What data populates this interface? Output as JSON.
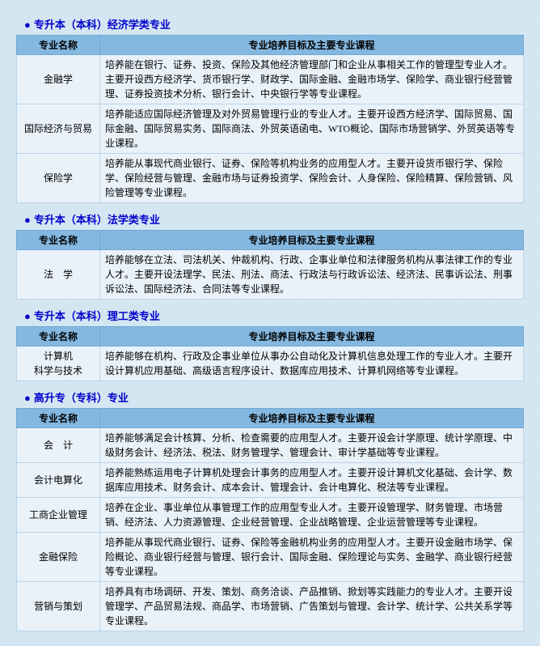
{
  "sections": [
    {
      "title": "专升本（本科）经济学类专业",
      "col1": "专业名称",
      "col2": "专业培养目标及主要专业课程",
      "rows": [
        {
          "name": "金融学",
          "desc": "培养能在银行、证券、投资、保险及其他经济管理部门和企业从事相关工作的管理型专业人才。主要开设西方经济学、货币银行学、财政学、国际金融、金融市场学、保险学、商业银行经营管理、证券投资技术分析、银行会计、中央银行学等专业课程。"
        },
        {
          "name": "国际经济与贸易",
          "desc": "培养能适应国际经济管理及对外贸易管理行业的专业人才。主要开设西方经济学、国际贸易、国际金融、国际贸易实务、国际商法、外贸英语函电、WTO概论、国际市场营销学、外贸英语等专业课程。"
        },
        {
          "name": "保险学",
          "desc": "培养能从事现代商业银行、证券、保险等机构业务的应用型人才。主要开设货币银行学、保险学、保险经营与管理、金融市场与证券投资学、保险会计、人身保险、保险精算、保险营销、风险管理等专业课程。"
        }
      ]
    },
    {
      "title": "专升本（本科）法学类专业",
      "col1": "专业名称",
      "col2": "专业培养目标及主要专业课程",
      "rows": [
        {
          "name": "法　学",
          "desc": "培养能够在立法、司法机关、仲裁机构、行政、企事业单位和法律服务机构从事法律工作的专业人才。主要开设法理学、民法、刑法、商法、行政法与行政诉讼法、经济法、民事诉讼法、刑事诉讼法、国际经济法、合同法等专业课程。"
        }
      ]
    },
    {
      "title": "专升本（本科）理工类专业",
      "col1": "专业名称",
      "col2": "专业培养目标及主要专业课程",
      "rows": [
        {
          "name": "计算机\n科学与技术",
          "desc": "培养能够在机构、行政及企事业单位从事办公自动化及计算机信息处理工作的专业人才。主要开设计算机应用基础、高级语言程序设计、数据库应用技术、计算机网络等专业课程。"
        }
      ]
    },
    {
      "title": "高升专（专科）专业",
      "col1": "专业名称",
      "col2": "专业培养目标及主要专业课程",
      "rows": [
        {
          "name": "会　计",
          "desc": "培养能够满足会计核算、分析、检查需要的应用型人才。主要开设会计学原理、统计学原理、中级财务会计、经济法、税法、财务管理学、管理会计、审计学基础等专业课程。"
        },
        {
          "name": "会计电算化",
          "desc": "培养能熟练运用电子计算机处理会计事务的应用型人才。主要开设计算机文化基础、会计学、数据库应用技术、财务会计、成本会计、管理会计、会计电算化、税法等专业课程。"
        },
        {
          "name": "工商企业管理",
          "desc": "培养在企业、事业单位从事管理工作的应用型专业人才。主要开设管理学、财务管理、市场营销、经济法、人力资源管理、企业经营管理、企业战略管理、企业运营管理等专业课程。"
        },
        {
          "name": "金融保险",
          "desc": "培养能从事现代商业银行、证券、保险等金融机构业务的应用型人才。主要开设金融市场学、保险概论、商业银行经营与管理、银行会计、国际金融、保险理论与实务、金融学、商业银行经营等专业课程。"
        },
        {
          "name": "营销与策划",
          "desc": "培养具有市场调研、开发、策划、商务洽谈、产品推销、掀划等实践能力的专业人才。主要开设管理学、产品贸易法规、商品学、市场营销、广告策划与管理、会计学、统计学、公共关系学等专业课程。"
        }
      ]
    }
  ]
}
